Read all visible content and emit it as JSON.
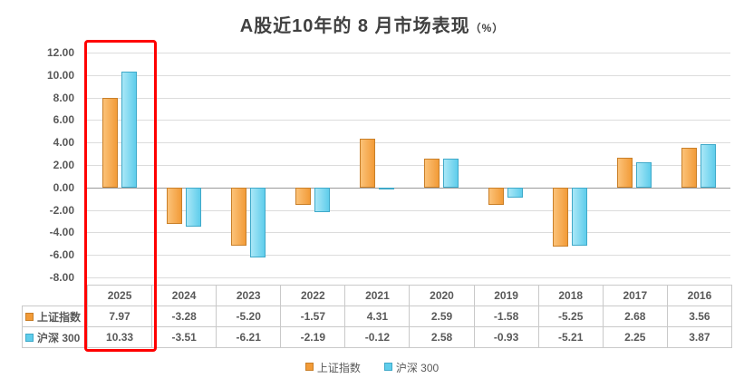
{
  "title": {
    "main": "A股近10年的 8 月市场表现",
    "suffix": "（%）"
  },
  "highlight": {
    "color": "#FF0000",
    "column": "2025"
  },
  "chart_data": {
    "type": "bar",
    "title": "A股近10年的 8 月市场表现（%）",
    "categories": [
      "2025",
      "2024",
      "2023",
      "2022",
      "2021",
      "2020",
      "2019",
      "2018",
      "2017",
      "2016"
    ],
    "series": [
      {
        "name": "上证指数",
        "fill": "#F29B38",
        "fill_light": "#FBC278",
        "border": "#C97F28",
        "values": [
          7.97,
          -3.28,
          -5.2,
          -1.57,
          4.31,
          2.59,
          -1.58,
          -5.25,
          2.68,
          3.56
        ]
      },
      {
        "name": "沪深 300",
        "fill": "#5FCDEB",
        "fill_light": "#A9E7F7",
        "border": "#3FA9C9",
        "values": [
          10.33,
          -3.51,
          -6.21,
          -2.19,
          -0.12,
          2.58,
          -0.93,
          -5.21,
          2.25,
          3.87
        ]
      }
    ],
    "ylim": [
      -8,
      12
    ],
    "yticks": [
      12,
      10,
      8,
      6,
      4,
      2,
      0,
      -2,
      -4,
      -6,
      -8
    ],
    "ytick_format": "0.00",
    "grid": true,
    "legend_position": "bottom",
    "data_table_shown": true
  }
}
